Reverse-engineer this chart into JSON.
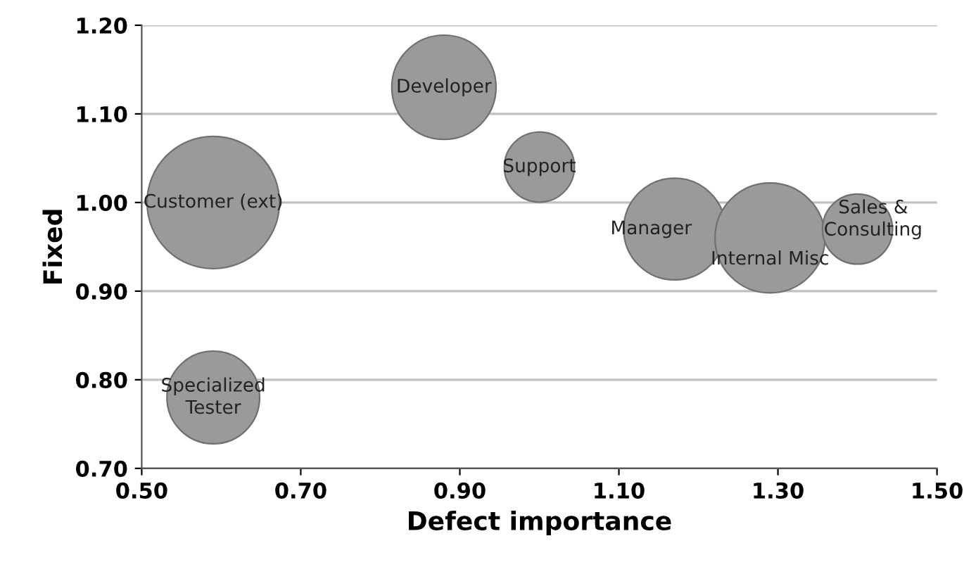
{
  "chart_data": {
    "type": "bubble",
    "xlabel": "Defect importance",
    "ylabel": "Fixed",
    "series": [
      {
        "color": "#9a9a9a",
        "x": [
          0.59,
          0.88,
          1.0,
          0.59,
          1.17,
          1.29,
          1.4
        ],
        "values": [
          1.0,
          1.13,
          1.04,
          0.78,
          0.97,
          0.96,
          0.97
        ],
        "sizes": [
          1,
          0.62,
          0.28,
          0.49,
          0.59,
          0.69,
          0.28
        ]
      }
    ],
    "annotations": [
      {
        "text": "Customer (ext)",
        "x": 0.59,
        "y": 1.0
      },
      {
        "text": "Developer",
        "x": 0.88,
        "y": 1.13
      },
      {
        "text": "Support",
        "x": 1.0,
        "y": 1.04
      },
      {
        "text": "Specialized\nTester",
        "x": 0.59,
        "y": 0.78
      },
      {
        "text": "Manager",
        "x": 1.17,
        "y": 0.97
      },
      {
        "text": "Internal Misc",
        "x": 1.29,
        "y": 0.96
      },
      {
        "text": "Sales &\nConsulting",
        "x": 1.4,
        "y": 0.97
      }
    ],
    "xlim": [
      0.5,
      1.5
    ],
    "xticks": [
      {
        "value": 0.5,
        "label": "0.50"
      },
      {
        "value": 0.7,
        "label": "0.70"
      },
      {
        "value": 0.9,
        "label": "0.90"
      },
      {
        "value": 1.1,
        "label": "1.10"
      },
      {
        "value": 1.3,
        "label": "1.30"
      },
      {
        "value": 1.5,
        "label": "1.50"
      }
    ],
    "ylim": [
      0.7,
      1.2
    ],
    "yticks": [
      {
        "value": 0.7,
        "label": "0.70"
      },
      {
        "value": 0.8,
        "label": "0.80"
      },
      {
        "value": 0.9,
        "label": "0.90"
      },
      {
        "value": 1.0,
        "label": "1.00"
      },
      {
        "value": 1.1,
        "label": "1.10"
      },
      {
        "value": 1.2,
        "label": "1.20"
      }
    ],
    "grid": "y"
  }
}
